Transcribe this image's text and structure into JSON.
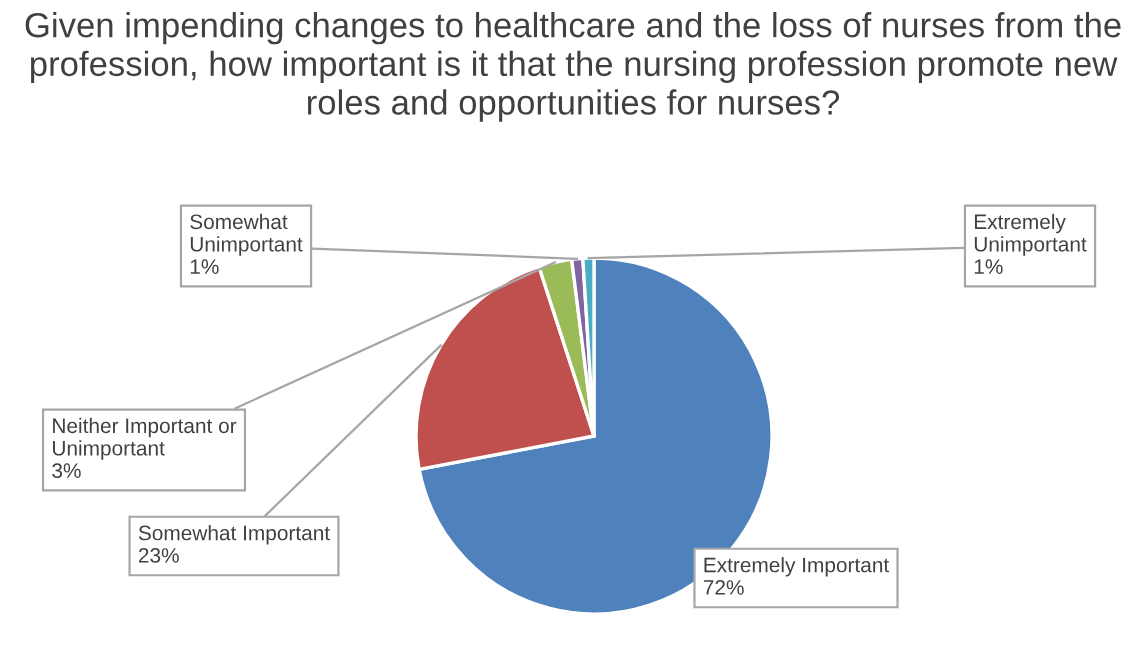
{
  "chart_data": {
    "type": "pie",
    "title": "Given impending changes to healthcare and the loss of nurses from the profession, how important is it that the nursing profession promote new roles and opportunities for nurses?",
    "categories": [
      "Extremely Important",
      "Somewhat Important",
      "Neither Important or\nUnimportant",
      "Somewhat\nUnimportant",
      "Extremely\nUnimportant"
    ],
    "values": [
      72,
      23,
      3,
      1,
      1
    ],
    "value_labels": [
      "72%",
      "23%",
      "3%",
      "1%",
      "1%"
    ],
    "colors": [
      "#4f81bd",
      "#c0504d",
      "#9bbb59",
      "#8064a2",
      "#4bacc6"
    ],
    "legend": false
  }
}
